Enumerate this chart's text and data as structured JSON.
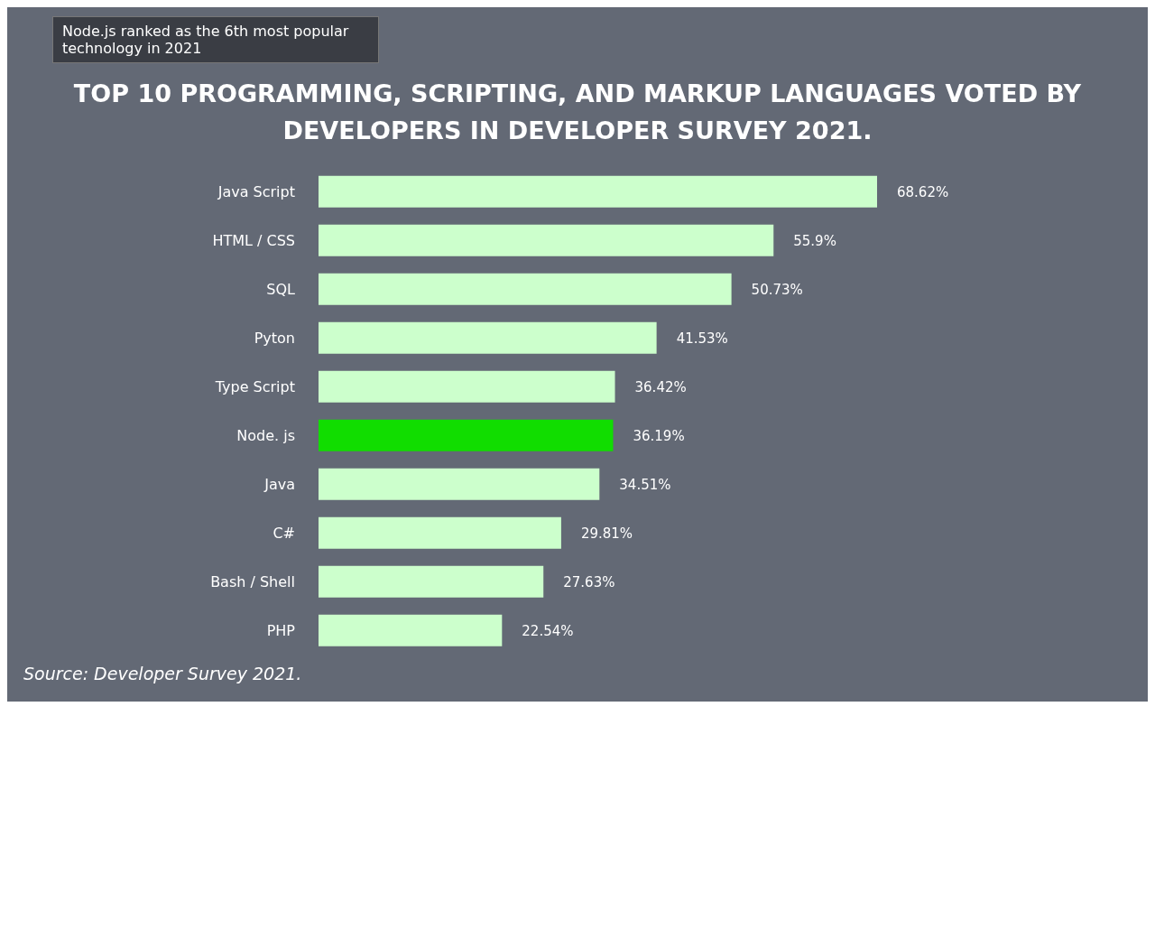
{
  "chart_data": {
    "type": "bar",
    "orientation": "horizontal",
    "relative": false,
    "title": "TOP 10 PROGRAMMING, SCRIPTING, AND MARKUP LANGUAGES VOTED BY DEVELOPERS IN DEVELOPER SURVEY 2021.",
    "annotations": [
      "Node.js ranked as the 6th most popular technology in 2021",
      "Source: Developer Survey 2021."
    ],
    "categories": [
      "Java Script",
      "HTML / CSS",
      "SQL",
      "Pyton",
      "Type Script",
      "Node. js",
      "Java",
      "C#",
      "Bash / Shell",
      "PHP"
    ],
    "values": [
      68.62,
      55.9,
      50.73,
      41.53,
      36.42,
      36.19,
      34.51,
      29.81,
      27.63,
      22.54
    ],
    "value_labels": [
      "68.62%",
      "55.9%",
      "50.73%",
      "41.53%",
      "36.42%",
      "36.19%",
      "34.51%",
      "29.81%",
      "27.63%",
      "22.54%"
    ],
    "colors": [
      "#ccffcc",
      "#ccffcc",
      "#ccffcc",
      "#ccffcc",
      "#ccffcc",
      "#11dd00",
      "#ccffcc",
      "#ccffcc",
      "#ccffcc",
      "#ccffcc"
    ],
    "grid": false,
    "legend": false
  }
}
